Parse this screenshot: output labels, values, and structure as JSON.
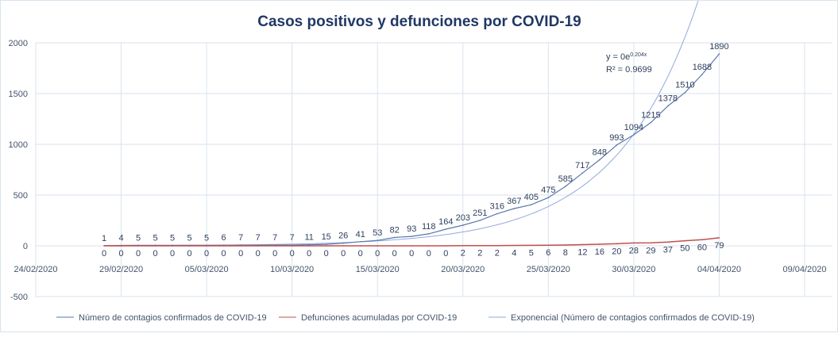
{
  "chart_data": {
    "type": "line",
    "title": "Casos positivos y defunciones por COVID-19",
    "xlabel": "",
    "ylabel": "",
    "ylim": [
      -500,
      2000
    ],
    "yticks": [
      "-500",
      "0",
      "500",
      "1000",
      "1500",
      "2000"
    ],
    "xlim": [
      "24/02/2020",
      "09/04/2020"
    ],
    "xticks": [
      "24/02/2020",
      "29/02/2020",
      "05/03/2020",
      "10/03/2020",
      "15/03/2020",
      "20/03/2020",
      "25/03/2020",
      "30/03/2020",
      "04/04/2020",
      "09/04/2020"
    ],
    "grid": true,
    "legend_position": "bottom",
    "x": [
      "28/02/2020",
      "29/02/2020",
      "01/03/2020",
      "02/03/2020",
      "03/03/2020",
      "04/03/2020",
      "05/03/2020",
      "06/03/2020",
      "07/03/2020",
      "08/03/2020",
      "09/03/2020",
      "10/03/2020",
      "11/03/2020",
      "12/03/2020",
      "13/03/2020",
      "14/03/2020",
      "15/03/2020",
      "16/03/2020",
      "17/03/2020",
      "18/03/2020",
      "19/03/2020",
      "20/03/2020",
      "21/03/2020",
      "22/03/2020",
      "23/03/2020",
      "24/03/2020",
      "25/03/2020",
      "26/03/2020",
      "27/03/2020",
      "28/03/2020",
      "29/03/2020",
      "30/03/2020",
      "31/03/2020",
      "01/04/2020",
      "02/04/2020",
      "03/04/2020",
      "04/04/2020"
    ],
    "series": [
      {
        "name": "Número de contagios confirmados de COVID-19",
        "color": "#5a78ad",
        "values": [
          1,
          4,
          5,
          5,
          5,
          5,
          5,
          6,
          7,
          7,
          7,
          7,
          11,
          15,
          26,
          41,
          53,
          82,
          93,
          118,
          164,
          203,
          251,
          316,
          367,
          405,
          475,
          585,
          717,
          848,
          993,
          1094,
          1215,
          1378,
          1510,
          1688,
          1890
        ]
      },
      {
        "name": "Defunciones acumuladas por COVID-19",
        "color": "#c0504d",
        "values": [
          0,
          0,
          0,
          0,
          0,
          0,
          0,
          0,
          0,
          0,
          0,
          0,
          0,
          0,
          0,
          0,
          0,
          0,
          0,
          0,
          0,
          2,
          2,
          2,
          4,
          5,
          6,
          8,
          12,
          16,
          20,
          28,
          29,
          37,
          50,
          60,
          79
        ]
      }
    ],
    "trendline": {
      "name": "Exponencial (Número de contagios confirmados de COVID-19)",
      "type": "exponential",
      "color": "#8faadc",
      "equation": "y = 0e",
      "exponent": "0.204x",
      "r2": "R² = 0.9699"
    }
  }
}
